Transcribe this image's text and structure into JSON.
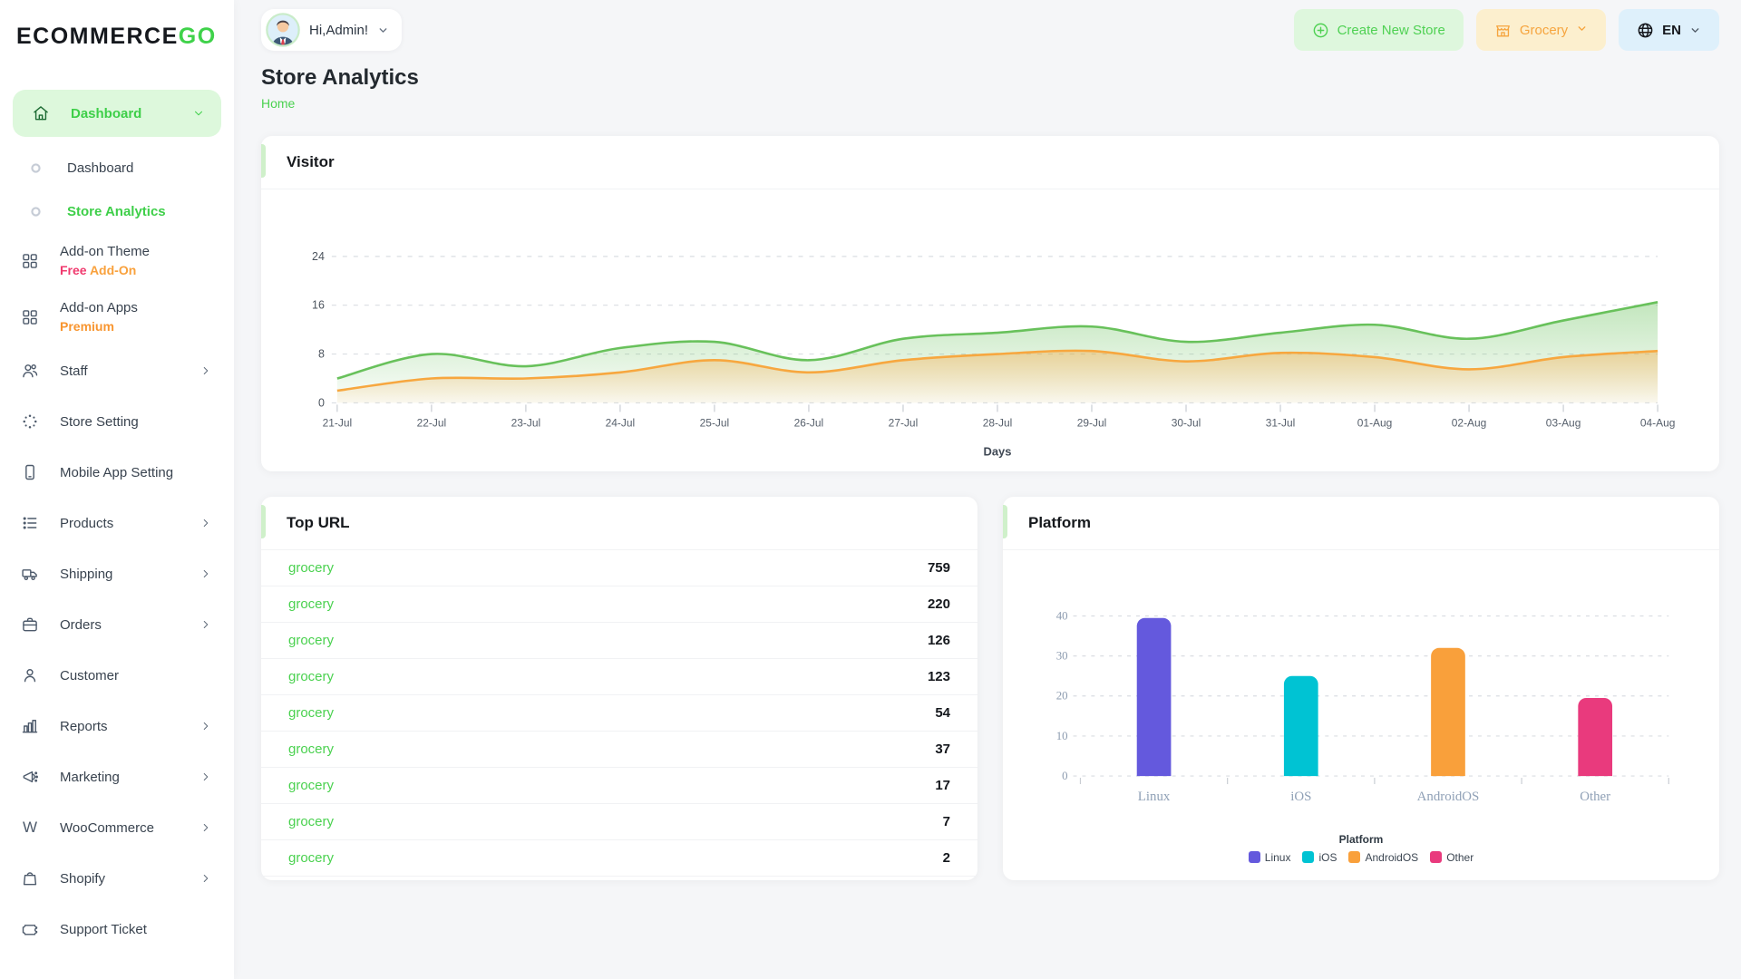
{
  "brand": {
    "logo_primary": "ECOMMERCE",
    "logo_accent": "GO",
    "accent_color": "#3fd24a"
  },
  "topbar": {
    "greeting": "Hi,Admin!",
    "create_store_label": "Create New Store",
    "store_name": "Grocery",
    "language": "EN"
  },
  "page": {
    "title": "Store Analytics",
    "breadcrumb": "Home"
  },
  "sidebar": {
    "items": [
      {
        "name": "dashboard-group",
        "label": "Dashboard",
        "icon": "home",
        "type": "group",
        "active": true,
        "chevron": "down"
      },
      {
        "name": "dashboard",
        "label": "Dashboard",
        "icon": "ring",
        "type": "sub"
      },
      {
        "name": "store-analytics",
        "label": "Store Analytics",
        "icon": "ring",
        "type": "sub",
        "active": true
      },
      {
        "name": "addon-theme",
        "label": "Add-on Theme",
        "icon": "grid",
        "type": "item",
        "badge": [
          {
            "text": "Free",
            "color": "#f03a6e"
          },
          {
            "text": " Add-On",
            "color": "#f9a13c"
          }
        ]
      },
      {
        "name": "addon-apps",
        "label": "Add-on Apps",
        "icon": "grid",
        "type": "item",
        "badge": [
          {
            "text": "Premium",
            "color": "#f8952f"
          }
        ]
      },
      {
        "name": "staff",
        "label": "Staff",
        "icon": "users",
        "type": "item",
        "chevron": "right"
      },
      {
        "name": "store-setting",
        "label": "Store Setting",
        "icon": "spinner",
        "type": "item"
      },
      {
        "name": "mobile-app-setting",
        "label": "Mobile App Setting",
        "icon": "mobile",
        "type": "item"
      },
      {
        "name": "products",
        "label": "Products",
        "icon": "list",
        "type": "item",
        "chevron": "right"
      },
      {
        "name": "shipping",
        "label": "Shipping",
        "icon": "truck",
        "type": "item",
        "chevron": "right"
      },
      {
        "name": "orders",
        "label": "Orders",
        "icon": "briefcase",
        "type": "item",
        "chevron": "right"
      },
      {
        "name": "customer",
        "label": "Customer",
        "icon": "user",
        "type": "item"
      },
      {
        "name": "reports",
        "label": "Reports",
        "icon": "bar-chart",
        "type": "item",
        "chevron": "right"
      },
      {
        "name": "marketing",
        "label": "Marketing",
        "icon": "megaphone",
        "type": "item",
        "chevron": "right"
      },
      {
        "name": "woocommerce",
        "label": "WooCommerce",
        "icon": "letter-w",
        "type": "item",
        "chevron": "right"
      },
      {
        "name": "shopify",
        "label": "Shopify",
        "icon": "shopping-bag",
        "type": "item",
        "chevron": "right"
      },
      {
        "name": "support-ticket",
        "label": "Support Ticket",
        "icon": "ticket",
        "type": "item"
      }
    ]
  },
  "visitor_card": {
    "title": "Visitor"
  },
  "top_url_card": {
    "title": "Top URL",
    "rows": [
      {
        "url": "grocery",
        "count": "759"
      },
      {
        "url": "grocery",
        "count": "220"
      },
      {
        "url": "grocery",
        "count": "126"
      },
      {
        "url": "grocery",
        "count": "123"
      },
      {
        "url": "grocery",
        "count": "54"
      },
      {
        "url": "grocery",
        "count": "37"
      },
      {
        "url": "grocery",
        "count": "17"
      },
      {
        "url": "grocery",
        "count": "7"
      },
      {
        "url": "grocery",
        "count": "2"
      }
    ]
  },
  "platform_card": {
    "title": "Platform"
  },
  "chart_data": [
    {
      "id": "visitor",
      "type": "area",
      "title": "Visitor",
      "x": [
        "21-Jul",
        "22-Jul",
        "23-Jul",
        "24-Jul",
        "25-Jul",
        "26-Jul",
        "27-Jul",
        "28-Jul",
        "29-Jul",
        "30-Jul",
        "31-Jul",
        "01-Aug",
        "02-Aug",
        "03-Aug",
        "04-Aug"
      ],
      "series": [
        {
          "name": "series-green",
          "color": "#68c15b",
          "fill_from": "rgba(104,193,91,0.40)",
          "fill_to": "rgba(104,193,91,0.03)",
          "values": [
            4,
            8,
            6,
            9,
            10,
            7,
            10.5,
            11.5,
            12.5,
            10,
            11.5,
            12.8,
            10.5,
            13.5,
            16.5
          ]
        },
        {
          "name": "series-orange",
          "color": "#f7a73f",
          "fill_from": "rgba(247,167,63,0.42)",
          "fill_to": "rgba(247,167,63,0.06)",
          "values": [
            2,
            4,
            4,
            5,
            7,
            5,
            7,
            8,
            8.5,
            6.8,
            8.2,
            7.5,
            5.5,
            7.5,
            8.5
          ]
        }
      ],
      "yticks": [
        0,
        8,
        16,
        24
      ],
      "ylim": [
        0,
        26
      ],
      "xlabel": "Days",
      "grid": "dashed-horizontal",
      "legend_position": "none"
    },
    {
      "id": "platform",
      "type": "bar",
      "title": "Platform",
      "categories": [
        "Linux",
        "iOS",
        "AndroidOS",
        "Other"
      ],
      "values": [
        39.5,
        25,
        32,
        19.5
      ],
      "colors": [
        "#6459dd",
        "#00c3d3",
        "#f9a03b",
        "#e93a7d"
      ],
      "yticks": [
        0,
        10,
        20,
        30,
        40
      ],
      "ylim": [
        0,
        44
      ],
      "legend_title": "Platform",
      "legend": [
        "Linux",
        "iOS",
        "AndroidOS",
        "Other"
      ],
      "legend_position": "bottom",
      "grid": "dashed-horizontal"
    }
  ]
}
